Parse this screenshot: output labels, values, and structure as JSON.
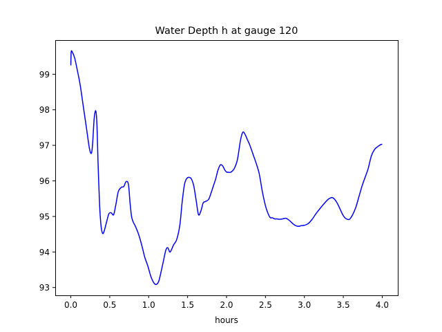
{
  "chart_data": {
    "type": "line",
    "title": "Water Depth h at gauge 120",
    "xlabel": "hours",
    "ylabel": "",
    "xlim": [
      -0.2,
      4.2
    ],
    "ylim": [
      92.78,
      99.96
    ],
    "xticks": [
      0.0,
      0.5,
      1.0,
      1.5,
      2.0,
      2.5,
      3.0,
      3.5,
      4.0
    ],
    "xtick_labels": [
      "0.0",
      "0.5",
      "1.0",
      "1.5",
      "2.0",
      "2.5",
      "3.0",
      "3.5",
      "4.0"
    ],
    "yticks": [
      93,
      94,
      95,
      96,
      97,
      98,
      99
    ],
    "ytick_labels": [
      "93",
      "94",
      "95",
      "96",
      "97",
      "98",
      "99"
    ],
    "grid": false,
    "series": [
      {
        "name": "",
        "color": "#0000ff",
        "x": [
          0.0,
          0.005,
          0.02,
          0.05,
          0.08,
          0.12,
          0.16,
          0.2,
          0.24,
          0.265,
          0.28,
          0.3,
          0.32,
          0.335,
          0.35,
          0.37,
          0.39,
          0.41,
          0.43,
          0.46,
          0.49,
          0.52,
          0.55,
          0.58,
          0.61,
          0.65,
          0.68,
          0.71,
          0.74,
          0.76,
          0.78,
          0.8,
          0.83,
          0.87,
          0.91,
          0.95,
          0.99,
          1.03,
          1.07,
          1.1,
          1.13,
          1.16,
          1.19,
          1.22,
          1.245,
          1.27,
          1.29,
          1.32,
          1.36,
          1.4,
          1.43,
          1.46,
          1.49,
          1.52,
          1.55,
          1.58,
          1.61,
          1.64,
          1.67,
          1.7,
          1.73,
          1.77,
          1.8,
          1.83,
          1.86,
          1.89,
          1.92,
          1.95,
          1.98,
          2.0,
          2.03,
          2.06,
          2.1,
          2.14,
          2.18,
          2.21,
          2.24,
          2.27,
          2.3,
          2.34,
          2.38,
          2.42,
          2.46,
          2.5,
          2.53,
          2.56,
          2.59,
          2.62,
          2.65,
          2.68,
          2.72,
          2.76,
          2.8,
          2.84,
          2.88,
          2.92,
          2.96,
          3.0,
          3.05,
          3.1,
          3.15,
          3.2,
          3.25,
          3.3,
          3.35,
          3.38,
          3.42,
          3.46,
          3.5,
          3.54,
          3.58,
          3.62,
          3.66,
          3.7,
          3.74,
          3.78,
          3.82,
          3.86,
          3.9,
          3.94,
          3.98,
          4.0
        ],
        "y": [
          99.25,
          99.63,
          99.62,
          99.45,
          99.15,
          98.7,
          98.1,
          97.5,
          96.9,
          96.78,
          97.05,
          97.75,
          97.97,
          97.6,
          96.5,
          95.3,
          94.7,
          94.52,
          94.6,
          94.85,
          95.08,
          95.1,
          95.05,
          95.35,
          95.7,
          95.82,
          95.84,
          95.98,
          95.9,
          95.4,
          95.0,
          94.85,
          94.72,
          94.5,
          94.2,
          93.85,
          93.6,
          93.3,
          93.12,
          93.09,
          93.18,
          93.45,
          93.75,
          94.05,
          94.12,
          94.0,
          94.05,
          94.2,
          94.35,
          94.75,
          95.4,
          95.9,
          96.07,
          96.1,
          96.05,
          95.85,
          95.45,
          95.05,
          95.15,
          95.38,
          95.42,
          95.48,
          95.65,
          95.85,
          96.05,
          96.3,
          96.45,
          96.42,
          96.3,
          96.25,
          96.24,
          96.25,
          96.35,
          96.6,
          97.15,
          97.37,
          97.3,
          97.15,
          97.0,
          96.75,
          96.5,
          96.2,
          95.7,
          95.3,
          95.1,
          94.97,
          94.96,
          94.93,
          94.93,
          94.92,
          94.93,
          94.95,
          94.9,
          94.82,
          94.75,
          94.72,
          94.74,
          94.75,
          94.8,
          94.92,
          95.08,
          95.22,
          95.35,
          95.47,
          95.53,
          95.5,
          95.38,
          95.2,
          95.02,
          94.93,
          94.92,
          95.05,
          95.25,
          95.55,
          95.85,
          96.1,
          96.35,
          96.7,
          96.88,
          96.96,
          97.02,
          97.03
        ]
      }
    ]
  }
}
